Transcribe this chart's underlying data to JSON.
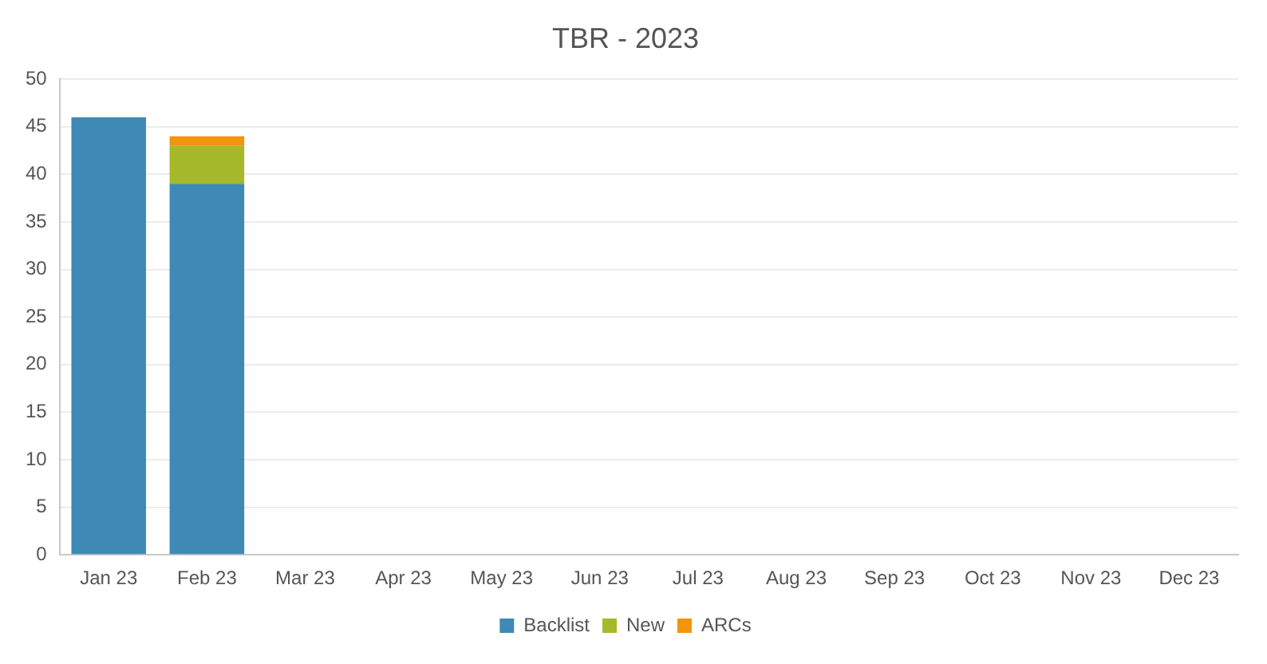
{
  "chart_data": {
    "type": "bar",
    "title": "TBR - 2023",
    "categories": [
      "Jan 23",
      "Feb 23",
      "Mar 23",
      "Apr 23",
      "May 23",
      "Jun 23",
      "Jul 23",
      "Aug 23",
      "Sep 23",
      "Oct 23",
      "Nov 23",
      "Dec 23"
    ],
    "series": [
      {
        "name": "Backlist",
        "color": "#3f8ab5",
        "values": [
          46,
          39,
          null,
          null,
          null,
          null,
          null,
          null,
          null,
          null,
          null,
          null
        ]
      },
      {
        "name": "New",
        "color": "#a5b92b",
        "values": [
          null,
          4,
          null,
          null,
          null,
          null,
          null,
          null,
          null,
          null,
          null,
          null
        ]
      },
      {
        "name": "ARCs",
        "color": "#f0950c",
        "values": [
          null,
          1,
          null,
          null,
          null,
          null,
          null,
          null,
          null,
          null,
          null,
          null
        ]
      }
    ],
    "stacked": true,
    "ylim": [
      0,
      50
    ],
    "yticks": [
      0,
      5,
      10,
      15,
      20,
      25,
      30,
      35,
      40,
      45,
      50
    ],
    "grid": "y",
    "legend": "bottom"
  }
}
